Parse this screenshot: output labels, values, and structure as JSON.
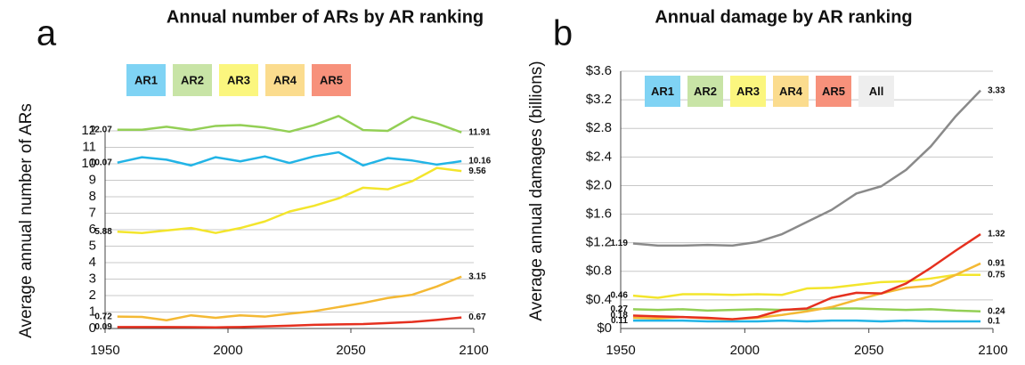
{
  "chart_data": [
    {
      "type": "line",
      "panel_label": "a",
      "title": "Annual number of ARs by AR ranking",
      "y_label": "Average annual number of ARs",
      "x": [
        1955,
        1965,
        1975,
        1985,
        1995,
        2005,
        2015,
        2025,
        2035,
        2045,
        2055,
        2065,
        2075,
        2085,
        2095
      ],
      "xlim": [
        1950,
        2100
      ],
      "xticks": [
        1950,
        2000,
        2050,
        2100
      ],
      "ylim": [
        0,
        12
      ],
      "yticks": [
        0,
        1,
        2,
        3,
        4,
        5,
        6,
        7,
        8,
        9,
        10,
        11,
        12
      ],
      "grid": true,
      "series": [
        {
          "name": "AR1",
          "color": "#22b4e6",
          "legend_color": "#7fd3f4",
          "values": [
            10.07,
            10.4,
            10.25,
            9.9,
            10.4,
            10.15,
            10.45,
            10.05,
            10.45,
            10.7,
            9.9,
            10.35,
            10.2,
            9.95,
            10.16
          ],
          "value_labels": [
            "10.07",
            null,
            null,
            null,
            null,
            null,
            null,
            null,
            null,
            null,
            null,
            null,
            null,
            null,
            "10.16"
          ]
        },
        {
          "name": "AR2",
          "color": "#93cf55",
          "legend_color": "#c8e4a6",
          "values": [
            12.07,
            12.07,
            12.25,
            12.05,
            12.3,
            12.35,
            12.2,
            11.95,
            12.35,
            12.9,
            12.05,
            12.0,
            12.85,
            12.45,
            11.91
          ],
          "value_labels": [
            "12.07",
            null,
            null,
            null,
            null,
            null,
            null,
            null,
            null,
            null,
            null,
            null,
            null,
            null,
            "11.91"
          ]
        },
        {
          "name": "AR3",
          "color": "#f3e52c",
          "legend_color": "#fbf67e",
          "values": [
            5.88,
            5.8,
            5.95,
            6.1,
            5.8,
            6.1,
            6.5,
            7.1,
            7.45,
            7.9,
            8.55,
            8.45,
            8.95,
            9.75,
            9.56
          ],
          "value_labels": [
            "5.88",
            null,
            null,
            null,
            null,
            null,
            null,
            null,
            null,
            null,
            null,
            null,
            null,
            null,
            "9.56"
          ]
        },
        {
          "name": "AR4",
          "color": "#f4b934",
          "legend_color": "#fbdc8e",
          "values": [
            0.72,
            0.7,
            0.5,
            0.8,
            0.65,
            0.8,
            0.72,
            0.9,
            1.05,
            1.3,
            1.55,
            1.85,
            2.05,
            2.55,
            3.15
          ],
          "value_labels": [
            "0.72",
            null,
            null,
            null,
            null,
            null,
            null,
            null,
            null,
            null,
            null,
            null,
            null,
            null,
            "3.15"
          ]
        },
        {
          "name": "AR5",
          "color": "#e5301f",
          "legend_color": "#f7917b",
          "values": [
            0.09,
            0.09,
            0.09,
            0.08,
            0.07,
            0.09,
            0.13,
            0.17,
            0.22,
            0.25,
            0.27,
            0.33,
            0.4,
            0.52,
            0.67
          ],
          "value_labels": [
            "0.09",
            null,
            null,
            null,
            null,
            null,
            null,
            null,
            null,
            null,
            null,
            null,
            null,
            null,
            "0.67"
          ]
        }
      ]
    },
    {
      "type": "line",
      "panel_label": "b",
      "title": "Annual damage by AR ranking",
      "y_label": "Average annual damages (billions)",
      "x": [
        1955,
        1965,
        1975,
        1985,
        1995,
        2005,
        2015,
        2025,
        2035,
        2045,
        2055,
        2065,
        2075,
        2085,
        2095
      ],
      "xlim": [
        1950,
        2100
      ],
      "xticks": [
        1950,
        2000,
        2050,
        2100
      ],
      "ylim": [
        0,
        3.6
      ],
      "yticks": [
        {
          "value": 0,
          "label": "$0"
        },
        {
          "value": 0.4,
          "label": "$0.4"
        },
        {
          "value": 0.8,
          "label": "$0.8"
        },
        {
          "value": 1.2,
          "label": "$1.2"
        },
        {
          "value": 1.6,
          "label": "$1.6"
        },
        {
          "value": 2.0,
          "label": "$2.0"
        },
        {
          "value": 2.4,
          "label": "$2.4"
        },
        {
          "value": 2.8,
          "label": "$2.8"
        },
        {
          "value": 3.2,
          "label": "$3.2"
        },
        {
          "value": 3.6,
          "label": "$3.6"
        }
      ],
      "grid": true,
      "series": [
        {
          "name": "AR1",
          "color": "#22b4e6",
          "legend_color": "#7fd3f4",
          "values": [
            0.11,
            0.11,
            0.11,
            0.1,
            0.1,
            0.1,
            0.11,
            0.1,
            0.11,
            0.11,
            0.1,
            0.11,
            0.1,
            0.1,
            0.1
          ],
          "value_labels": [
            "0.11",
            null,
            null,
            null,
            null,
            null,
            null,
            null,
            null,
            null,
            null,
            null,
            null,
            null,
            "0.1"
          ]
        },
        {
          "name": "AR2",
          "color": "#93cf55",
          "legend_color": "#c8e4a6",
          "values": [
            0.27,
            0.26,
            0.27,
            0.25,
            0.26,
            0.27,
            0.26,
            0.27,
            0.28,
            0.28,
            0.27,
            0.26,
            0.27,
            0.25,
            0.24
          ],
          "value_labels": [
            "0.27",
            null,
            null,
            null,
            null,
            null,
            null,
            null,
            null,
            null,
            null,
            null,
            null,
            null,
            "0.24"
          ]
        },
        {
          "name": "AR3",
          "color": "#f3e52c",
          "legend_color": "#fbf67e",
          "values": [
            0.46,
            0.43,
            0.48,
            0.48,
            0.47,
            0.48,
            0.47,
            0.56,
            0.57,
            0.61,
            0.65,
            0.66,
            0.7,
            0.75,
            0.75
          ],
          "value_labels": [
            "0.46",
            null,
            null,
            null,
            null,
            null,
            null,
            null,
            null,
            null,
            null,
            null,
            null,
            null,
            "0.75"
          ]
        },
        {
          "name": "AR4",
          "color": "#f4b934",
          "legend_color": "#fbdc8e",
          "values": [
            0.15,
            0.14,
            0.16,
            0.14,
            0.13,
            0.15,
            0.19,
            0.24,
            0.3,
            0.4,
            0.49,
            0.57,
            0.6,
            0.75,
            0.91
          ],
          "value_labels": [
            null,
            null,
            null,
            null,
            null,
            null,
            null,
            null,
            null,
            null,
            null,
            null,
            null,
            null,
            "0.91"
          ]
        },
        {
          "name": "AR5",
          "color": "#e5301f",
          "legend_color": "#f7917b",
          "values": [
            0.18,
            0.17,
            0.16,
            0.15,
            0.13,
            0.16,
            0.26,
            0.28,
            0.43,
            0.5,
            0.49,
            0.63,
            0.85,
            1.09,
            1.32
          ],
          "value_labels": [
            "0.18",
            null,
            null,
            null,
            null,
            null,
            null,
            null,
            null,
            null,
            null,
            null,
            null,
            null,
            "1.32"
          ]
        },
        {
          "name": "All",
          "color": "#8a8a8a",
          "legend_color": "#eeeeee",
          "values": [
            1.19,
            1.16,
            1.16,
            1.17,
            1.16,
            1.21,
            1.32,
            1.49,
            1.66,
            1.89,
            1.99,
            2.22,
            2.55,
            2.97,
            3.33
          ],
          "value_labels": [
            "1.19",
            null,
            null,
            null,
            null,
            null,
            null,
            null,
            null,
            null,
            null,
            null,
            null,
            null,
            "3.33"
          ]
        }
      ]
    }
  ]
}
